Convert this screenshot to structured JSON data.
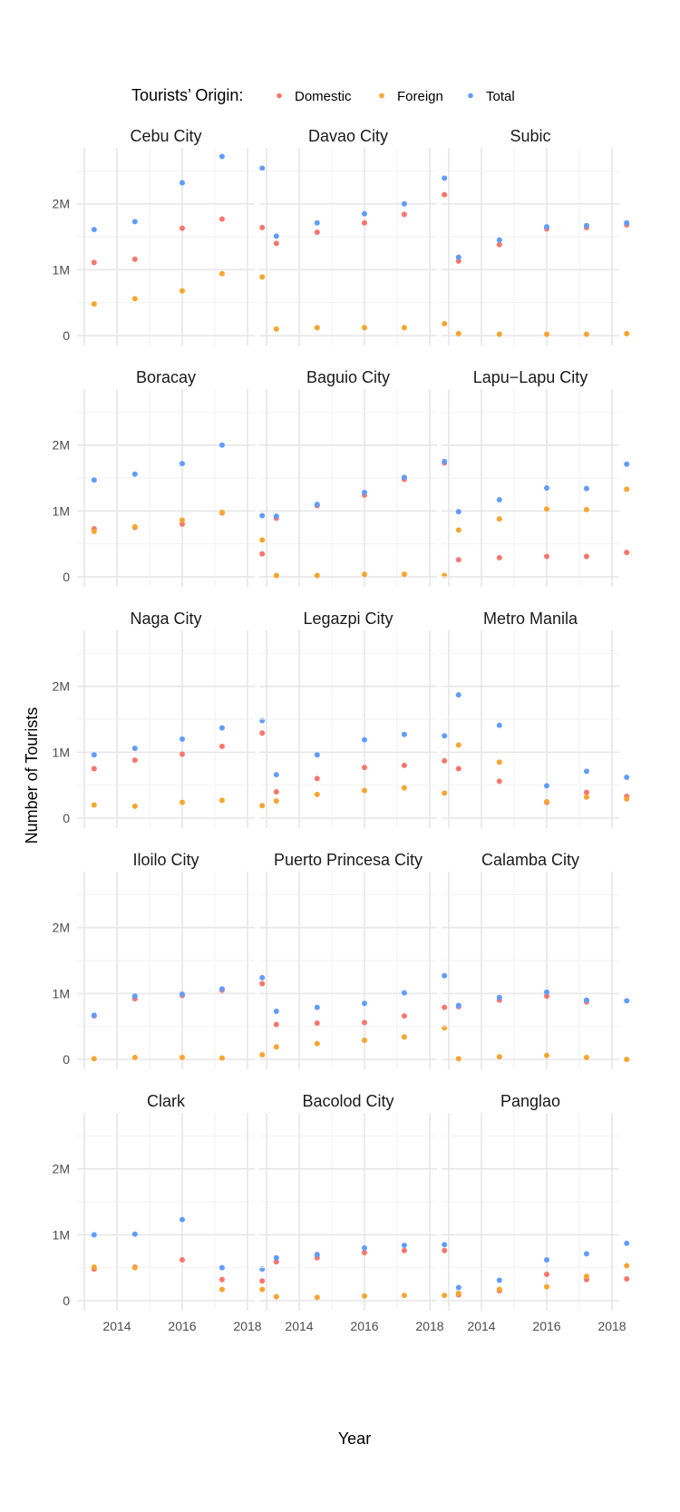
{
  "chart_data": {
    "type": "scatter",
    "facet_layout": "5 rows x 3 columns",
    "xlabel": "Year",
    "ylabel": "Number of Tourists",
    "legend_title": "Tourists’ Origin:",
    "legend_position": "top",
    "x": [
      2013,
      2014,
      2015,
      2016,
      2017,
      2018
    ],
    "x_ticks": [
      2014,
      2016,
      2018
    ],
    "x_tick_labels": [
      "2014",
      "2016",
      "2018"
    ],
    "xlim": [
      2013,
      2018
    ],
    "y_ticks": [
      0,
      1000000,
      2000000
    ],
    "y_tick_labels": [
      "0",
      "1M",
      "2M"
    ],
    "ylim": [
      0,
      2850000
    ],
    "grid": true,
    "series_names": [
      "Domestic",
      "Foreign",
      "Total"
    ],
    "colors": {
      "Domestic": "#F8766D",
      "Foreign": "#F8A52F",
      "Total": "#619CFF"
    },
    "panels": [
      {
        "title": "Cebu City",
        "Domestic": [
          1110000,
          1160000,
          1630000,
          1770000,
          1640000
        ],
        "Foreign": [
          480000,
          560000,
          680000,
          940000,
          890000
        ],
        "Total": [
          1610000,
          1730000,
          2320000,
          2720000,
          2540000
        ]
      },
      {
        "title": "Davao City",
        "Domestic": [
          1400000,
          1570000,
          1710000,
          1840000,
          2140000
        ],
        "Foreign": [
          100000,
          120000,
          120000,
          120000,
          180000
        ],
        "Total": [
          1510000,
          1710000,
          1850000,
          2000000,
          2390000
        ]
      },
      {
        "title": "Subic",
        "Domestic": [
          1130000,
          1380000,
          1620000,
          1640000,
          1680000
        ],
        "Foreign": [
          30000,
          20000,
          20000,
          20000,
          30000
        ],
        "Total": [
          1190000,
          1450000,
          1650000,
          1670000,
          1710000
        ]
      },
      {
        "title": "Boracay",
        "Domestic": [
          730000,
          750000,
          800000,
          970000,
          350000
        ],
        "Foreign": [
          690000,
          760000,
          860000,
          980000,
          560000
        ],
        "Total": [
          1470000,
          1560000,
          1720000,
          2000000,
          930000
        ]
      },
      {
        "title": "Baguio City",
        "Domestic": [
          890000,
          1080000,
          1240000,
          1480000,
          1730000
        ],
        "Foreign": [
          20000,
          20000,
          40000,
          40000,
          20000
        ],
        "Total": [
          920000,
          1100000,
          1280000,
          1510000,
          1750000
        ]
      },
      {
        "title": "Lapu−Lapu City",
        "Domestic": [
          260000,
          290000,
          310000,
          310000,
          370000
        ],
        "Foreign": [
          710000,
          880000,
          1030000,
          1020000,
          1330000
        ],
        "Total": [
          990000,
          1170000,
          1350000,
          1340000,
          1710000
        ]
      },
      {
        "title": "Naga City",
        "Domestic": [
          750000,
          880000,
          970000,
          1090000,
          1290000
        ],
        "Foreign": [
          200000,
          180000,
          240000,
          270000,
          190000
        ],
        "Total": [
          960000,
          1060000,
          1200000,
          1370000,
          1480000
        ]
      },
      {
        "title": "Legazpi City",
        "Domestic": [
          400000,
          600000,
          770000,
          800000,
          870000
        ],
        "Foreign": [
          260000,
          360000,
          420000,
          460000,
          380000
        ],
        "Total": [
          660000,
          960000,
          1190000,
          1270000,
          1250000
        ]
      },
      {
        "title": "Metro Manila",
        "Domestic": [
          750000,
          560000,
          240000,
          390000,
          330000
        ],
        "Foreign": [
          1110000,
          850000,
          250000,
          320000,
          290000
        ],
        "Total": [
          1870000,
          1410000,
          490000,
          710000,
          620000
        ]
      },
      {
        "title": "Iloilo City",
        "Domestic": [
          660000,
          920000,
          970000,
          1050000,
          1150000
        ],
        "Foreign": [
          10000,
          30000,
          30000,
          20000,
          70000
        ],
        "Total": [
          670000,
          960000,
          990000,
          1070000,
          1240000
        ]
      },
      {
        "title": "Puerto Princesa City",
        "Domestic": [
          530000,
          550000,
          560000,
          660000,
          790000
        ],
        "Foreign": [
          190000,
          240000,
          290000,
          340000,
          480000
        ],
        "Total": [
          730000,
          790000,
          850000,
          1010000,
          1270000
        ]
      },
      {
        "title": "Calamba City",
        "Domestic": [
          800000,
          900000,
          960000,
          870000,
          null
        ],
        "Foreign": [
          10000,
          40000,
          60000,
          30000,
          0
        ],
        "Total": [
          820000,
          940000,
          1020000,
          900000,
          890000
        ]
      },
      {
        "title": "Clark",
        "Domestic": [
          480000,
          510000,
          620000,
          320000,
          300000
        ],
        "Foreign": [
          510000,
          500000,
          null,
          170000,
          170000
        ],
        "Total": [
          1000000,
          1010000,
          1230000,
          500000,
          480000
        ]
      },
      {
        "title": "Bacolod City",
        "Domestic": [
          590000,
          650000,
          730000,
          760000,
          760000
        ],
        "Foreign": [
          60000,
          50000,
          70000,
          80000,
          80000
        ],
        "Total": [
          650000,
          700000,
          800000,
          840000,
          850000
        ]
      },
      {
        "title": "Panglao",
        "Domestic": [
          90000,
          150000,
          400000,
          320000,
          330000
        ],
        "Foreign": [
          110000,
          170000,
          210000,
          370000,
          530000
        ],
        "Total": [
          200000,
          310000,
          620000,
          710000,
          870000
        ]
      }
    ],
    "point_x": [
      2013.3,
      2014.55,
      2016,
      2017.22,
      2018.45
    ]
  }
}
